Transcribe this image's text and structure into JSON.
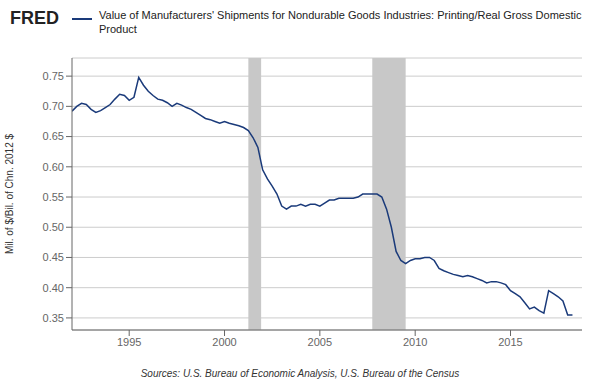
{
  "chart_data": {
    "type": "line",
    "title": "Value of Manufacturers' Shipments for Nondurable Goods Industries: Printing/Real Gross Domestic Product",
    "y_label": "Mil. of $/Bil. of Chn. 2012 $",
    "annotations": [
      "FRED",
      "Sources: U.S. Bureau of Economic Analysis, U.S. Bureau of the Census"
    ],
    "color": "#1a3a7a",
    "grid": true,
    "xlim": [
      1992.0,
      2018.75
    ],
    "xticks": [
      1995,
      2000,
      2005,
      2010,
      2015
    ],
    "ylim": [
      0.33,
      0.78
    ],
    "yticks": [
      0.35,
      {
        "value": 0.4,
        "label": "0.40"
      },
      0.45,
      {
        "value": 0.5,
        "label": "0.50"
      },
      0.55,
      {
        "value": 0.6,
        "label": "0.60"
      },
      0.65,
      {
        "value": 0.7,
        "label": "0.70"
      },
      0.75
    ],
    "recession_bands": {
      "color": "#c8c8c8",
      "ranges": [
        [
          2001.25,
          2001.92
        ],
        [
          2007.75,
          2009.5
        ]
      ]
    },
    "x": [
      1992.0,
      1992.25,
      1992.5,
      1992.75,
      1993.0,
      1993.25,
      1993.5,
      1993.75,
      1994.0,
      1994.25,
      1994.5,
      1994.75,
      1995.0,
      1995.25,
      1995.5,
      1995.75,
      1996.0,
      1996.25,
      1996.5,
      1996.75,
      1997.0,
      1997.25,
      1997.5,
      1997.75,
      1998.0,
      1998.25,
      1998.5,
      1998.75,
      1999.0,
      1999.25,
      1999.5,
      1999.75,
      2000.0,
      2000.25,
      2000.5,
      2000.75,
      2001.0,
      2001.25,
      2001.5,
      2001.75,
      2002.0,
      2002.25,
      2002.5,
      2002.75,
      2003.0,
      2003.25,
      2003.5,
      2003.75,
      2004.0,
      2004.25,
      2004.5,
      2004.75,
      2005.0,
      2005.25,
      2005.5,
      2005.75,
      2006.0,
      2006.25,
      2006.5,
      2006.75,
      2007.0,
      2007.25,
      2007.5,
      2007.75,
      2008.0,
      2008.25,
      2008.5,
      2008.75,
      2009.0,
      2009.25,
      2009.5,
      2009.75,
      2010.0,
      2010.25,
      2010.5,
      2010.75,
      2011.0,
      2011.25,
      2011.5,
      2011.75,
      2012.0,
      2012.25,
      2012.5,
      2012.75,
      2013.0,
      2013.25,
      2013.5,
      2013.75,
      2014.0,
      2014.25,
      2014.5,
      2014.75,
      2015.0,
      2015.25,
      2015.5,
      2015.75,
      2016.0,
      2016.25,
      2016.5,
      2016.75,
      2017.0,
      2017.25,
      2017.5,
      2017.75,
      2018.0,
      2018.25
    ],
    "values": [
      0.692,
      0.7,
      0.705,
      0.703,
      0.695,
      0.69,
      0.693,
      0.698,
      0.703,
      0.712,
      0.72,
      0.718,
      0.71,
      0.715,
      0.748,
      0.735,
      0.725,
      0.718,
      0.712,
      0.71,
      0.706,
      0.7,
      0.705,
      0.702,
      0.698,
      0.695,
      0.69,
      0.685,
      0.68,
      0.678,
      0.675,
      0.672,
      0.675,
      0.672,
      0.67,
      0.668,
      0.665,
      0.66,
      0.648,
      0.632,
      0.595,
      0.58,
      0.568,
      0.555,
      0.535,
      0.53,
      0.535,
      0.535,
      0.538,
      0.535,
      0.538,
      0.538,
      0.535,
      0.54,
      0.545,
      0.545,
      0.548,
      0.548,
      0.548,
      0.548,
      0.55,
      0.555,
      0.555,
      0.555,
      0.555,
      0.55,
      0.53,
      0.5,
      0.46,
      0.445,
      0.44,
      0.445,
      0.448,
      0.448,
      0.45,
      0.45,
      0.445,
      0.432,
      0.428,
      0.425,
      0.422,
      0.42,
      0.418,
      0.42,
      0.418,
      0.415,
      0.412,
      0.408,
      0.41,
      0.41,
      0.408,
      0.405,
      0.395,
      0.39,
      0.385,
      0.375,
      0.365,
      0.368,
      0.362,
      0.358,
      0.395,
      0.39,
      0.385,
      0.378,
      0.355,
      0.355
    ]
  }
}
